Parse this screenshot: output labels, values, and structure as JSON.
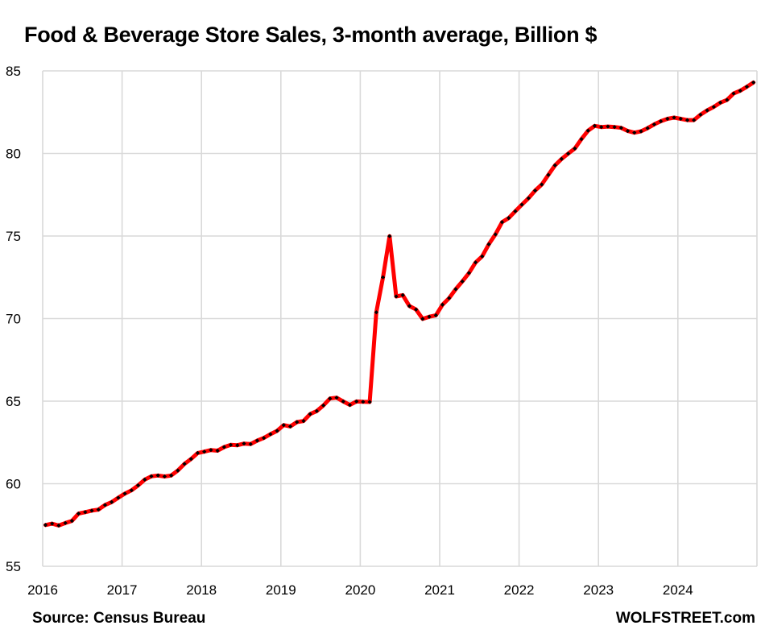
{
  "chart_data": {
    "type": "line",
    "title": "Food & Beverage Store Sales, 3-month average, Billion $",
    "xlabel": "",
    "ylabel": "",
    "ylim": [
      55,
      85
    ],
    "yticks": [
      55,
      60,
      65,
      70,
      75,
      80,
      85
    ],
    "ytick_labels": [
      "55",
      "60",
      "65",
      "70",
      "75",
      "80",
      "85"
    ],
    "xlim": [
      "2016-01",
      "2024-12"
    ],
    "xticks": [
      2016,
      2017,
      2018,
      2019,
      2020,
      2021,
      2022,
      2023,
      2024
    ],
    "xtick_labels": [
      "2016",
      "2017",
      "2018",
      "2019",
      "2020",
      "2021",
      "2022",
      "2023",
      "2024"
    ],
    "grid": true,
    "legend": "none",
    "frequency": "monthly",
    "start": "2016-01",
    "series": [
      {
        "name": "Food & Beverage Store Sales, 3-month average",
        "color": "#ff0000",
        "marker_color": "#000000",
        "marker": "diamond",
        "values": [
          57.5,
          57.58,
          57.47,
          57.62,
          57.75,
          58.19,
          58.28,
          58.37,
          58.43,
          58.71,
          58.89,
          59.15,
          59.4,
          59.6,
          59.9,
          60.25,
          60.45,
          60.5,
          60.44,
          60.5,
          60.8,
          61.2,
          61.5,
          61.86,
          61.94,
          62.04,
          62.0,
          62.22,
          62.35,
          62.33,
          62.43,
          62.4,
          62.61,
          62.77,
          63.0,
          63.2,
          63.55,
          63.47,
          63.73,
          63.8,
          64.22,
          64.4,
          64.74,
          65.16,
          65.21,
          64.98,
          64.77,
          64.98,
          64.96,
          64.95,
          70.38,
          72.5,
          74.99,
          71.34,
          71.42,
          70.76,
          70.55,
          69.98,
          70.11,
          70.2,
          70.84,
          71.24,
          71.78,
          72.25,
          72.76,
          73.4,
          73.77,
          74.5,
          75.1,
          75.84,
          76.09,
          76.5,
          76.9,
          77.29,
          77.75,
          78.12,
          78.7,
          79.28,
          79.67,
          79.99,
          80.3,
          80.87,
          81.38,
          81.67,
          81.6,
          81.63,
          81.6,
          81.55,
          81.36,
          81.26,
          81.34,
          81.53,
          81.76,
          81.95,
          82.1,
          82.17,
          82.1,
          82.02,
          82.02,
          82.35,
          82.61,
          82.82,
          83.08,
          83.24,
          83.63,
          83.8,
          84.04,
          84.3
        ]
      }
    ],
    "annotations": {
      "source": "Source: Census Bureau",
      "brand": "WOLFSTREET.com"
    }
  }
}
